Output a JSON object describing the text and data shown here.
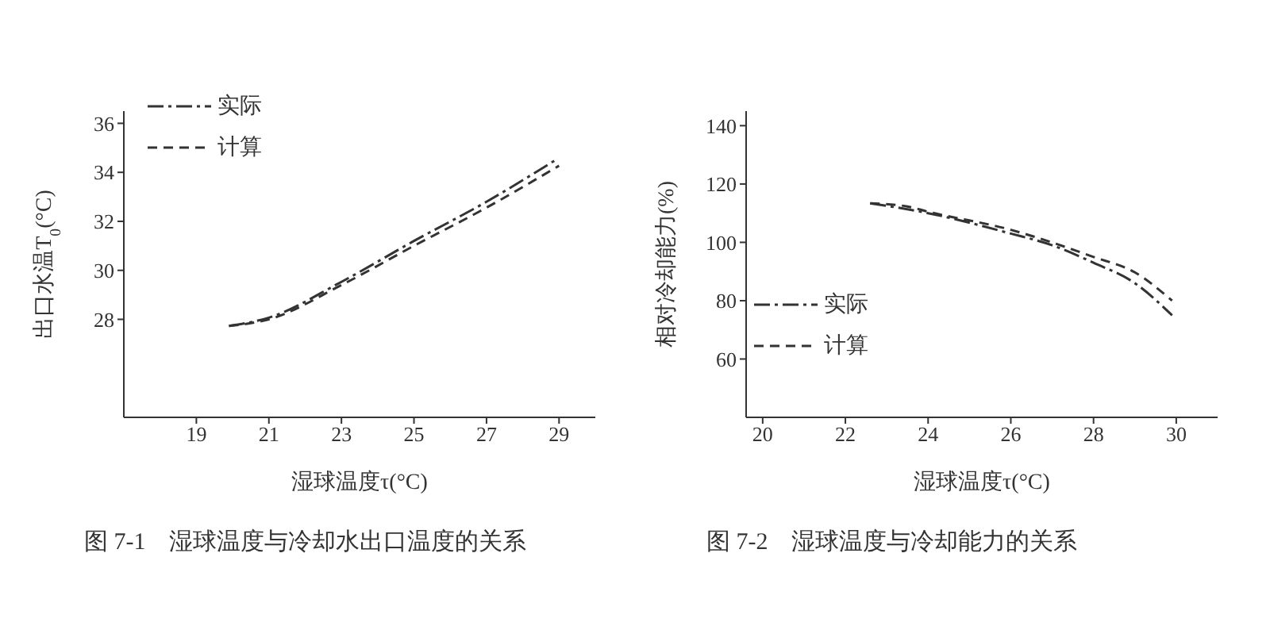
{
  "chart_data": [
    {
      "type": "line",
      "xlabel": "湿球温度τ(°C)",
      "ylabel": "出口水温T$_{0}$(°C)",
      "xlim": [
        17,
        30
      ],
      "xticks": [
        19,
        21,
        23,
        25,
        27,
        29
      ],
      "ylim": [
        24,
        36.5
      ],
      "yticks": [
        28,
        30,
        32,
        34,
        36
      ],
      "legend": "top left",
      "marker": "none",
      "annotations": [
        "图 7-1　湿球温度与冷却水出口温度的关系"
      ],
      "series": [
        {
          "name": "实际",
          "color": "#333333",
          "line_style": "dashdot",
          "x": [
            19.9,
            21,
            23,
            25,
            27,
            28.9
          ],
          "values": [
            27.73,
            28.07,
            29.53,
            31.2,
            32.8,
            34.5
          ]
        },
        {
          "name": "计算",
          "color": "#333333",
          "line_style": "dashed",
          "x": [
            19.9,
            21,
            23,
            25,
            27,
            29
          ],
          "values": [
            27.73,
            28.0,
            29.4,
            31.0,
            32.56,
            34.27
          ]
        }
      ]
    },
    {
      "type": "line",
      "xlabel": "湿球温度τ(°C)",
      "ylabel": "相对冷却能力(%)",
      "xlim": [
        19.6,
        31
      ],
      "xticks": [
        20,
        22,
        24,
        26,
        28,
        30
      ],
      "ylim": [
        40,
        145
      ],
      "yticks": [
        60,
        80,
        100,
        120,
        140
      ],
      "legend": "left",
      "marker": "none",
      "annotations": [
        "图 7-2　湿球温度与冷却能力的关系"
      ],
      "series": [
        {
          "name": "实际",
          "color": "#333333",
          "line_style": "dashdot",
          "x": [
            22.6,
            24,
            26,
            27,
            28,
            29,
            29.9
          ],
          "values": [
            113.4,
            110,
            103,
            99,
            93,
            86,
            75
          ]
        },
        {
          "name": "计算",
          "color": "#333333",
          "line_style": "dashed",
          "x": [
            22.6,
            23.5,
            24,
            26,
            28,
            29,
            29.9
          ],
          "values": [
            113.4,
            112.3,
            110.5,
            104.3,
            95,
            89.7,
            80
          ]
        }
      ]
    }
  ]
}
